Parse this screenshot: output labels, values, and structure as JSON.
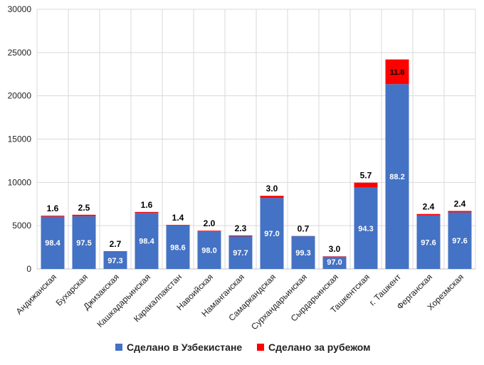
{
  "chart_data": {
    "type": "bar",
    "stacked": true,
    "title": "",
    "xlabel": "",
    "ylabel": "",
    "ylim": [
      0,
      30000
    ],
    "yticks": [
      0,
      5000,
      10000,
      15000,
      20000,
      25000,
      30000
    ],
    "grid": true,
    "legend_position": "bottom",
    "categories": [
      "Андижанская",
      "Бухарская",
      "Джизакская",
      "Кашкадарьинская",
      "Каракалпакстан",
      "Навоийская",
      "Наманганская",
      "Самаркандская",
      "Сурхандарьинская",
      "Сырдарьинская",
      "Ташкентская",
      "г. Ташкент",
      "Ферганская",
      "Хорезмская"
    ],
    "series": [
      {
        "name": "Сделано в Узбекистане",
        "color": "#4472C4",
        "values": [
          6050,
          6100,
          2000,
          6480,
          5020,
          4330,
          3780,
          8200,
          3780,
          1420,
          9400,
          21350,
          6200,
          6540
        ],
        "labels": [
          "98.4",
          "97.5",
          "97.3",
          "98.4",
          "98.6",
          "98.0",
          "97.7",
          "97.0",
          "99.3",
          "97.0",
          "94.3",
          "88.2",
          "97.6",
          "97.6"
        ]
      },
      {
        "name": "Сделано за рубежом",
        "color": "#FF0000",
        "values": [
          100,
          160,
          55,
          105,
          70,
          90,
          90,
          250,
          25,
          45,
          570,
          2850,
          150,
          160
        ],
        "labels": [
          "1.6",
          "2.5",
          "2.7",
          "1.6",
          "1.4",
          "2.0",
          "2.3",
          "3.0",
          "0.7",
          "3.0",
          "5.7",
          "11.8",
          "2.4",
          "2.4"
        ]
      }
    ]
  }
}
